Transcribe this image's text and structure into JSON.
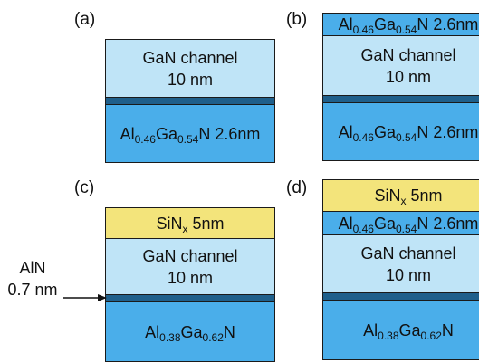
{
  "panels": {
    "a": {
      "label": "(a)",
      "gan": [
        "GaN channel",
        "10 nm"
      ],
      "barrier": {
        "al": "Al",
        "al_sub": "0.46",
        "ga": "Ga",
        "ga_sub": "0.54",
        "rest": "N 2.6nm"
      }
    },
    "b": {
      "label": "(b)",
      "cap": {
        "al": "Al",
        "al_sub": "0.46",
        "ga": "Ga",
        "ga_sub": "0.54",
        "rest": "N 2.6nm"
      },
      "gan": [
        "GaN channel",
        "10 nm"
      ],
      "barrier": {
        "al": "Al",
        "al_sub": "0.46",
        "ga": "Ga",
        "ga_sub": "0.54",
        "rest": "N 2.6nm"
      }
    },
    "c": {
      "label": "(c)",
      "sin": {
        "si": "SiN",
        "sub": "x",
        "rest": " 5nm"
      },
      "gan": [
        "GaN channel",
        "10 nm"
      ],
      "barrier": {
        "al": "Al",
        "al_sub": "0.38",
        "ga": "Ga",
        "ga_sub": "0.62",
        "rest": "N"
      }
    },
    "d": {
      "label": "(d)",
      "sin": {
        "si": "SiN",
        "sub": "x",
        "rest": " 5nm"
      },
      "cap": {
        "al": "Al",
        "al_sub": "0.46",
        "ga": "Ga",
        "ga_sub": "0.54",
        "rest": "N 2.6nm"
      },
      "gan": [
        "GaN channel",
        "10 nm"
      ],
      "barrier": {
        "al": "Al",
        "al_sub": "0.38",
        "ga": "Ga",
        "ga_sub": "0.62",
        "rest": "N"
      }
    }
  },
  "annotation": {
    "line1": "AlN",
    "line2": "0.7 nm"
  },
  "colors": {
    "algan": "#4aaeea",
    "gan": "#bfe4f7",
    "sin": "#f3e47b",
    "aln": "#1f5f8b"
  }
}
